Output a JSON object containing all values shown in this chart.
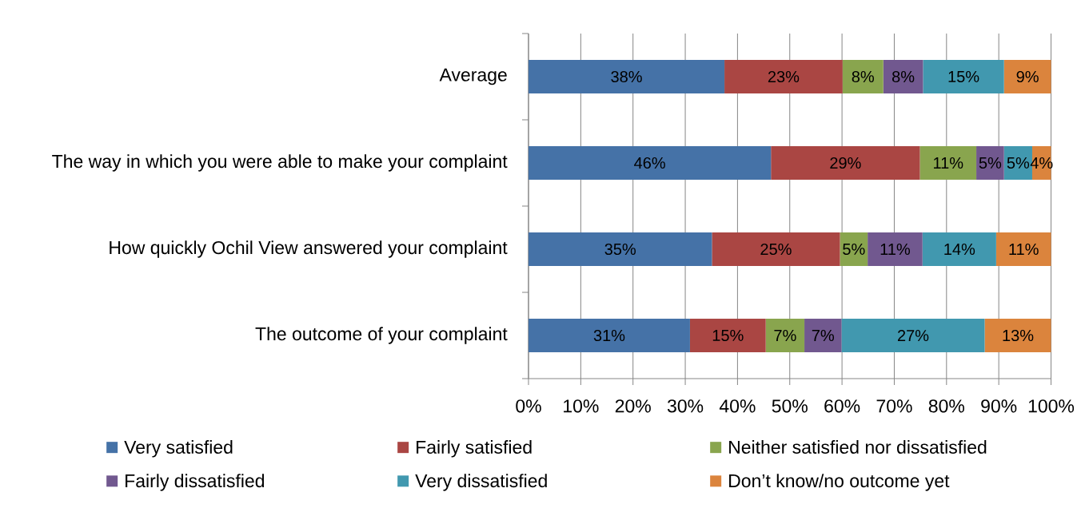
{
  "chart_data": {
    "type": "bar",
    "orientation": "horizontal",
    "stacked": true,
    "categories": [
      "Average",
      "The way in which you were able to make your complaint",
      "How quickly Ochil View answered your complaint",
      "The outcome of your complaint"
    ],
    "series": [
      {
        "name": "Very satisfied",
        "color": "#4572a7",
        "values": [
          37.5,
          46.4,
          35.1,
          30.9
        ],
        "value_labels": [
          "38%",
          "46%",
          "35%",
          "31%"
        ]
      },
      {
        "name": "Fairly satisfied",
        "color": "#aa4643",
        "values": [
          22.6,
          28.5,
          24.5,
          14.5
        ],
        "value_labels": [
          "23%",
          "29%",
          "25%",
          "15%"
        ]
      },
      {
        "name": "Neither satisfied nor dissatisfied",
        "color": "#89a54e",
        "values": [
          7.8,
          10.8,
          5.3,
          7.4
        ],
        "value_labels": [
          "8%",
          "11%",
          "5%",
          "7%"
        ]
      },
      {
        "name": "Fairly dissatisfied",
        "color": "#71588f",
        "values": [
          7.6,
          5.3,
          10.5,
          7.1
        ],
        "value_labels": [
          "8%",
          "5%",
          "11%",
          "7%"
        ]
      },
      {
        "name": "Very dissatisfied",
        "color": "#4198af",
        "values": [
          15.5,
          5.4,
          14.1,
          27.4
        ],
        "value_labels": [
          "15%",
          "5%",
          "14%",
          "27%"
        ]
      },
      {
        "name": "Don’t know/no outcome yet",
        "color": "#db843d",
        "values": [
          9.0,
          3.6,
          10.5,
          12.7
        ],
        "value_labels": [
          "9%",
          "4%",
          "11%",
          "13%"
        ]
      }
    ],
    "xlim": [
      0,
      100
    ],
    "xticks": [
      {
        "value": 0,
        "label": "0%"
      },
      {
        "value": 10,
        "label": "10%"
      },
      {
        "value": 20,
        "label": "20%"
      },
      {
        "value": 30,
        "label": "30%"
      },
      {
        "value": 40,
        "label": "40%"
      },
      {
        "value": 50,
        "label": "50%"
      },
      {
        "value": 60,
        "label": "60%"
      },
      {
        "value": 70,
        "label": "70%"
      },
      {
        "value": 80,
        "label": "80%"
      },
      {
        "value": 90,
        "label": "90%"
      },
      {
        "value": 100,
        "label": "100%"
      }
    ],
    "grid": "x",
    "legend": "bottom"
  }
}
